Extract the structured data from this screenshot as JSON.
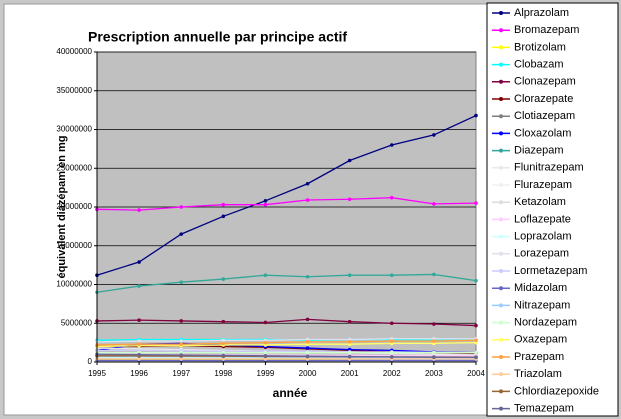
{
  "chart_data": {
    "type": "line",
    "title": "Prescription annuelle par principe actif",
    "x_label": "année",
    "y_label": "équivalent diazépam en mg",
    "categories": [
      "1995",
      "1996",
      "1997",
      "1998",
      "1999",
      "2000",
      "2001",
      "2002",
      "2003",
      "2004"
    ],
    "ylim": [
      0,
      40000000
    ],
    "yticks": [
      0,
      5000000,
      10000000,
      15000000,
      20000000,
      25000000,
      30000000,
      35000000,
      40000000
    ],
    "grid": true,
    "legend": "right",
    "series": [
      {
        "name": "Alprazolam",
        "color": "#000080",
        "values": [
          11200000,
          12900000,
          16500000,
          18800000,
          20800000,
          23000000,
          26000000,
          28000000,
          29300000,
          31800000
        ]
      },
      {
        "name": "Bromazepam",
        "color": "#ff00ff",
        "values": [
          19700000,
          19600000,
          20000000,
          20300000,
          20300000,
          20900000,
          21000000,
          21200000,
          20400000,
          20500000
        ]
      },
      {
        "name": "Brotizolam",
        "color": "#ffff00",
        "values": [
          300000,
          300000,
          300000,
          300000,
          300000,
          300000,
          300000,
          300000,
          300000,
          300000
        ]
      },
      {
        "name": "Clobazam",
        "color": "#00ffff",
        "values": [
          2800000,
          2900000,
          2900000,
          2900000,
          2900000,
          2800000,
          2900000,
          2900000,
          2800000,
          2800000
        ]
      },
      {
        "name": "Clonazepam",
        "color": "#800040",
        "values": [
          5300000,
          5400000,
          5300000,
          5200000,
          5100000,
          5500000,
          5200000,
          5000000,
          4900000,
          4700000
        ]
      },
      {
        "name": "Clorazepate",
        "color": "#800000",
        "values": [
          2000000,
          2000000,
          2100000,
          2000000,
          1900000,
          1700000,
          1500000,
          1300000,
          1200000,
          1100000
        ]
      },
      {
        "name": "Clotiazepam",
        "color": "#808080",
        "values": [
          800000,
          800000,
          800000,
          750000,
          700000,
          700000,
          650000,
          600000,
          600000,
          550000
        ]
      },
      {
        "name": "Cloxazolam",
        "color": "#0000ff",
        "values": [
          1500000,
          2300000,
          2400000,
          2200000,
          2000000,
          1800000,
          1600000,
          1500000,
          1300000,
          1200000
        ]
      },
      {
        "name": "Diazepam",
        "color": "#33a898",
        "values": [
          9000000,
          9800000,
          10300000,
          10700000,
          11200000,
          11000000,
          11200000,
          11200000,
          11300000,
          10500000
        ]
      },
      {
        "name": "Flunitrazepam",
        "color": "#e8e8e8",
        "values": [
          1800000,
          1700000,
          1600000,
          1500000,
          1400000,
          1300000,
          1200000,
          1100000,
          1000000,
          900000
        ]
      },
      {
        "name": "Flurazepam",
        "color": "#f0f0f0",
        "values": [
          500000,
          480000,
          460000,
          440000,
          420000,
          400000,
          380000,
          360000,
          340000,
          320000
        ]
      },
      {
        "name": "Ketazolam",
        "color": "#dcdcdc",
        "values": [
          400000,
          400000,
          400000,
          400000,
          400000,
          400000,
          400000,
          400000,
          400000,
          400000
        ]
      },
      {
        "name": "Loflazepate",
        "color": "#ffccff",
        "values": [
          1000000,
          980000,
          950000,
          920000,
          900000,
          880000,
          860000,
          840000,
          820000,
          800000
        ]
      },
      {
        "name": "Loprazolam",
        "color": "#ccffff",
        "values": [
          600000,
          600000,
          600000,
          600000,
          600000,
          600000,
          600000,
          600000,
          600000,
          600000
        ]
      },
      {
        "name": "Lorazepam",
        "color": "#e0e0f0",
        "values": [
          2600000,
          2700000,
          2700000,
          2800000,
          2800000,
          2900000,
          2900000,
          3000000,
          3000000,
          3000000
        ]
      },
      {
        "name": "Lormetazepam",
        "color": "#ccccff",
        "values": [
          1500000,
          1500000,
          1450000,
          1400000,
          1400000,
          1350000,
          1300000,
          1300000,
          1250000,
          1200000
        ]
      },
      {
        "name": "Midazolam",
        "color": "#6666cc",
        "values": [
          200000,
          200000,
          200000,
          200000,
          200000,
          200000,
          200000,
          200000,
          200000,
          200000
        ]
      },
      {
        "name": "Nitrazepam",
        "color": "#99ccff",
        "values": [
          700000,
          700000,
          680000,
          660000,
          640000,
          620000,
          600000,
          580000,
          560000,
          540000
        ]
      },
      {
        "name": "Nordazepam",
        "color": "#ccffcc",
        "values": [
          1200000,
          1200000,
          1200000,
          1200000,
          1200000,
          1200000,
          1200000,
          1200000,
          1200000,
          1200000
        ]
      },
      {
        "name": "Oxazepam",
        "color": "#ffff66",
        "values": [
          2000000,
          2100000,
          2100000,
          2200000,
          2200000,
          2300000,
          2300000,
          2400000,
          2400000,
          2500000
        ]
      },
      {
        "name": "Prazepam",
        "color": "#ffa040",
        "values": [
          2200000,
          2300000,
          2300000,
          2400000,
          2500000,
          2600000,
          2600000,
          2700000,
          2700000,
          2800000
        ]
      },
      {
        "name": "Triazolam",
        "color": "#ffcc99",
        "values": [
          400000,
          400000,
          400000,
          400000,
          400000,
          400000,
          400000,
          400000,
          400000,
          400000
        ]
      },
      {
        "name": "Chlordiazepoxide",
        "color": "#996633",
        "values": [
          800000,
          780000,
          760000,
          740000,
          720000,
          700000,
          680000,
          660000,
          640000,
          620000
        ]
      },
      {
        "name": "Temazepam",
        "color": "#666699",
        "values": [
          1000000,
          950000,
          900000,
          850000,
          800000,
          750000,
          700000,
          650000,
          620000,
          600000
        ]
      }
    ]
  }
}
